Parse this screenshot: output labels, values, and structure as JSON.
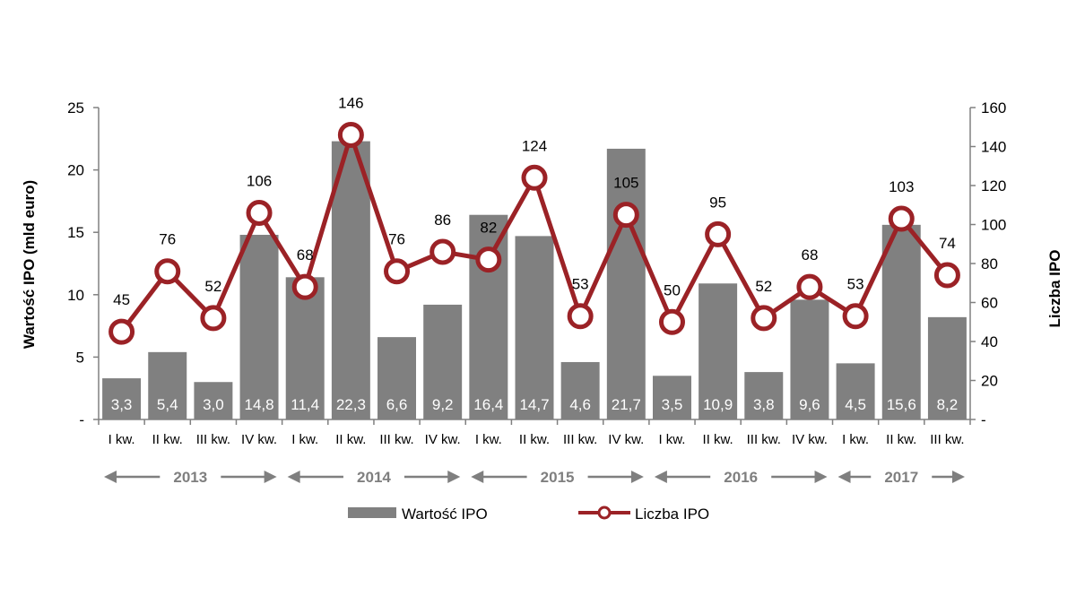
{
  "chart_data": {
    "type": "bar",
    "y_left_label": "Wartość IPO (mld euro)",
    "y_right_label": "Liczba IPO",
    "y_left_ticks": [
      "-",
      "5",
      "10",
      "15",
      "20",
      "25"
    ],
    "y_left_range": [
      0,
      25
    ],
    "y_right_ticks": [
      "-",
      "20",
      "40",
      "60",
      "80",
      "100",
      "120",
      "140",
      "160"
    ],
    "y_right_range": [
      0,
      160
    ],
    "categories": [
      "I kw.",
      "II kw.",
      "III kw.",
      "IV kw.",
      "I kw.",
      "II kw.",
      "III kw.",
      "IV kw.",
      "I kw.",
      "II kw.",
      "III kw.",
      "IV kw.",
      "I kw.",
      "II kw.",
      "III kw.",
      "IV kw.",
      "I kw.",
      "II kw.",
      "III kw."
    ],
    "years": [
      {
        "label": "2013",
        "start": 0,
        "end": 3
      },
      {
        "label": "2014",
        "start": 4,
        "end": 7
      },
      {
        "label": "2015",
        "start": 8,
        "end": 11
      },
      {
        "label": "2016",
        "start": 12,
        "end": 15
      },
      {
        "label": "2017",
        "start": 16,
        "end": 18
      }
    ],
    "series": [
      {
        "name": "Wartość IPO",
        "type": "bar",
        "axis": "left",
        "color": "#808080",
        "values": [
          3.3,
          5.4,
          3.0,
          14.8,
          11.4,
          22.3,
          6.6,
          9.2,
          16.4,
          14.7,
          4.6,
          21.7,
          3.5,
          10.9,
          3.8,
          9.6,
          4.5,
          15.6,
          8.2
        ],
        "labels": [
          "3,3",
          "5,4",
          "3,0",
          "14,8",
          "11,4",
          "22,3",
          "6,6",
          "9,2",
          "16,4",
          "14,7",
          "4,6",
          "21,7",
          "3,5",
          "10,9",
          "3,8",
          "9,6",
          "4,5",
          "15,6",
          "8,2"
        ]
      },
      {
        "name": "Liczba IPO",
        "type": "line",
        "axis": "right",
        "color": "#9b2226",
        "values": [
          45,
          76,
          52,
          106,
          68,
          146,
          76,
          86,
          82,
          124,
          53,
          105,
          50,
          95,
          52,
          68,
          53,
          103,
          74
        ],
        "labels": [
          "45",
          "76",
          "52",
          "106",
          "68",
          "146",
          "76",
          "86",
          "82",
          "124",
          "53",
          "105",
          "50",
          "95",
          "52",
          "68",
          "53",
          "103",
          "74"
        ]
      }
    ],
    "legend": [
      "Wartość IPO",
      "Liczba IPO"
    ]
  }
}
